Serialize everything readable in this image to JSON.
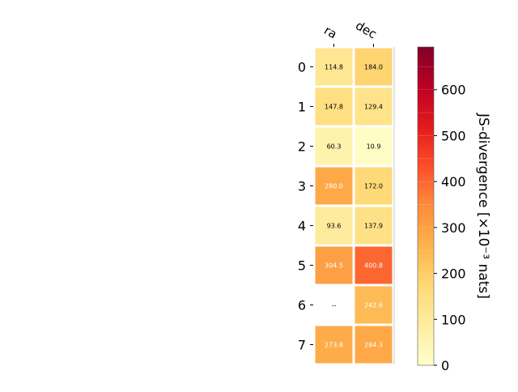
{
  "chart_data": {
    "type": "heatmap",
    "columns": [
      "ra",
      "dec"
    ],
    "rows": [
      "0",
      "1",
      "2",
      "3",
      "4",
      "5",
      "6",
      "7"
    ],
    "values": [
      [
        114.8,
        184.0
      ],
      [
        147.8,
        129.4
      ],
      [
        60.3,
        10.9
      ],
      [
        280.0,
        172.0
      ],
      [
        93.6,
        137.9
      ],
      [
        304.5,
        400.8
      ],
      [
        null,
        242.6
      ],
      [
        273.8,
        284.3
      ]
    ],
    "cell_labels": [
      [
        "114.8",
        "184.0"
      ],
      [
        "147.8",
        "129.4"
      ],
      [
        "60.3",
        "10.9"
      ],
      [
        "280.0",
        "172.0"
      ],
      [
        "93.6",
        "137.9"
      ],
      [
        "304.5",
        "400.8"
      ],
      [
        "--",
        "242.6"
      ],
      [
        "273.8",
        "284.3"
      ]
    ],
    "colorbar": {
      "label": "JS-divergence [×10⁻³ nats]",
      "range": [
        0,
        693
      ],
      "ticks": [
        0,
        100,
        200,
        300,
        400,
        500,
        600
      ],
      "tick_labels": [
        "0",
        "100",
        "200",
        "300",
        "400",
        "500",
        "600"
      ],
      "colormap": "YlOrRd"
    }
  }
}
